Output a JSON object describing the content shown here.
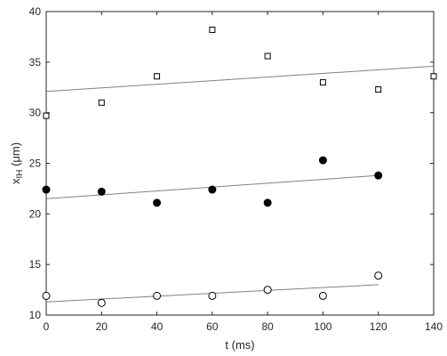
{
  "chart_data": {
    "type": "scatter",
    "title": "",
    "xlabel": "t (ms)",
    "ylabel": {
      "main": "x",
      "sub": "IH",
      "unit": " (μm)"
    },
    "xlim": [
      0,
      140
    ],
    "ylim": [
      10,
      40
    ],
    "xticks": [
      0,
      20,
      40,
      60,
      80,
      100,
      120,
      140
    ],
    "yticks": [
      10,
      15,
      20,
      25,
      30,
      35,
      40
    ],
    "grid": false,
    "legend": "none",
    "series": [
      {
        "marker": "square-open",
        "color": "#000000",
        "points": [
          [
            0,
            29.7
          ],
          [
            20,
            31.0
          ],
          [
            40,
            33.6
          ],
          [
            60,
            38.2
          ],
          [
            80,
            35.6
          ],
          [
            100,
            33.0
          ],
          [
            120,
            32.3
          ],
          [
            140,
            33.6
          ]
        ],
        "fit": {
          "x": [
            0,
            140
          ],
          "y": [
            32.1,
            34.6
          ],
          "color": "#808080"
        }
      },
      {
        "marker": "circle-filled",
        "color": "#000000",
        "points": [
          [
            0,
            22.4
          ],
          [
            20,
            22.2
          ],
          [
            40,
            21.1
          ],
          [
            60,
            22.4
          ],
          [
            80,
            21.1
          ],
          [
            100,
            25.3
          ],
          [
            120,
            23.8
          ]
        ],
        "fit": {
          "x": [
            0,
            120
          ],
          "y": [
            21.5,
            23.8
          ],
          "color": "#808080"
        }
      },
      {
        "marker": "circle-open",
        "color": "#000000",
        "points": [
          [
            0,
            11.9
          ],
          [
            20,
            11.2
          ],
          [
            40,
            11.9
          ],
          [
            60,
            11.9
          ],
          [
            80,
            12.5
          ],
          [
            100,
            11.9
          ],
          [
            120,
            13.9
          ]
        ],
        "fit": {
          "x": [
            0,
            120
          ],
          "y": [
            11.3,
            13.0
          ],
          "color": "#808080"
        }
      }
    ]
  }
}
